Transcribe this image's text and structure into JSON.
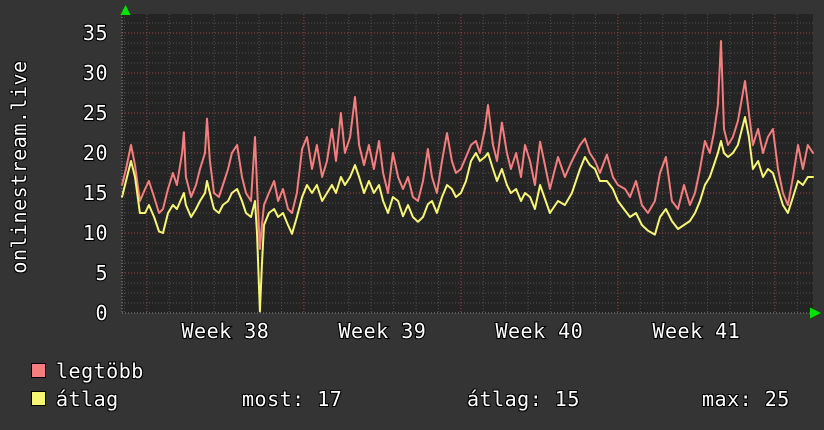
{
  "title": "onlinestream.live",
  "colors": {
    "background": "#343434",
    "plot_background": "#242424",
    "grid_minor": "#4e4e4e",
    "grid_major": "#9c4545",
    "axis": "#8a8a8a",
    "arrow": "#00e400",
    "text": "#ffffff",
    "series_max": "#f47d7d",
    "series_avg": "#f6f675"
  },
  "legend": {
    "items": [
      {
        "label": "legtöbb",
        "color": "#f47d7d"
      },
      {
        "label": "átlag",
        "color": "#f6f675"
      }
    ],
    "stats": [
      {
        "text": "most: 17"
      },
      {
        "text": "átlag: 15"
      },
      {
        "text": "max: 25"
      }
    ]
  },
  "chart_data": {
    "type": "line",
    "title": "onlinestream.live",
    "xlabel": "",
    "ylabel": "onlinestream.live",
    "grid": true,
    "legend_position": "bottom-left",
    "ylim": [
      0,
      37.375
    ],
    "y_ticks": [
      0,
      5,
      10,
      15,
      20,
      25,
      30,
      35
    ],
    "y_minor_step": 1.25,
    "x_unit": "days",
    "x_total_days": 30.81,
    "week_boundaries_days": [
      1.11,
      8.11,
      15.11,
      22.11,
      29.11
    ],
    "x_tick_labels": [
      {
        "label": "Week 38",
        "day": 4.61
      },
      {
        "label": "Week 39",
        "day": 11.61
      },
      {
        "label": "Week 40",
        "day": 18.61
      },
      {
        "label": "Week 41",
        "day": 25.61
      }
    ],
    "summary": {
      "most": 17,
      "atlag": 15,
      "max": 25
    },
    "x": [
      0,
      0.18,
      0.4,
      0.58,
      0.8,
      1.03,
      1.2,
      1.43,
      1.65,
      1.83,
      2.05,
      2.27,
      2.45,
      2.68,
      2.76,
      2.85,
      3.08,
      3.3,
      3.48,
      3.7,
      3.79,
      3.92,
      4.1,
      4.32,
      4.5,
      4.73,
      4.9,
      5.13,
      5.35,
      5.53,
      5.75,
      5.93,
      6.02,
      6.15,
      6.24,
      6.33,
      6.55,
      6.78,
      6.96,
      7.18,
      7.4,
      7.58,
      7.8,
      8.03,
      8.25,
      8.47,
      8.69,
      8.92,
      9.14,
      9.36,
      9.54,
      9.76,
      9.94,
      10.17,
      10.39,
      10.57,
      10.79,
      11.01,
      11.23,
      11.46,
      11.64,
      11.86,
      12.08,
      12.31,
      12.53,
      12.75,
      12.97,
      13.2,
      13.42,
      13.64,
      13.82,
      14.04,
      14.27,
      14.49,
      14.71,
      14.89,
      15.11,
      15.34,
      15.56,
      15.78,
      15.96,
      16.18,
      16.32,
      16.54,
      16.72,
      16.94,
      17.16,
      17.34,
      17.57,
      17.79,
      17.97,
      18.19,
      18.41,
      18.64,
      19.08,
      19.44,
      19.75,
      20.06,
      20.42,
      20.64,
      20.86,
      21.09,
      21.31,
      21.62,
      21.89,
      22.11,
      22.43,
      22.65,
      22.92,
      23.18,
      23.45,
      23.76,
      23.99,
      24.25,
      24.52,
      24.79,
      25.06,
      25.32,
      25.55,
      25.77,
      25.99,
      26.21,
      26.39,
      26.57,
      26.71,
      26.84,
      27.02,
      27.24,
      27.46,
      27.78,
      27.95,
      28.13,
      28.36,
      28.58,
      28.8,
      29.02,
      29.25,
      29.47,
      29.69,
      29.92,
      30.14,
      30.36,
      30.58,
      30.81
    ],
    "series": [
      {
        "name": "legtöbb",
        "color": "#f47d7d",
        "values": [
          16,
          18,
          21,
          18.5,
          14,
          15.5,
          16.5,
          14.5,
          12.5,
          13,
          15.5,
          17.5,
          16,
          20,
          22.6,
          17,
          14.5,
          16,
          18,
          20,
          24.3,
          19,
          15,
          14.5,
          16,
          18,
          20,
          21,
          17,
          15,
          14,
          22,
          16,
          8,
          11,
          13.5,
          15,
          16.5,
          14,
          15.5,
          13,
          12.5,
          15,
          20.5,
          22,
          18,
          21,
          17,
          19,
          23,
          19,
          25,
          20,
          22,
          27,
          21,
          18.5,
          21,
          18,
          21.5,
          17.5,
          15,
          20,
          17,
          15.5,
          17,
          14.5,
          14,
          16.5,
          20.5,
          17,
          15,
          19,
          22.5,
          19,
          17.5,
          18,
          19.5,
          21,
          21.5,
          20,
          23,
          26,
          21,
          19,
          23.8,
          20,
          18,
          20,
          17,
          21,
          19,
          16,
          21.4,
          15.5,
          19.5,
          17,
          19,
          21,
          21.8,
          20,
          19,
          17.5,
          19.8,
          17,
          16,
          15.5,
          14.5,
          16.5,
          13.5,
          12.5,
          14,
          17.5,
          19.5,
          14,
          13,
          16,
          13.5,
          15,
          18,
          21.5,
          20,
          22.5,
          26,
          34,
          23,
          21,
          22,
          24,
          29,
          25,
          21,
          23,
          20,
          22,
          23,
          18,
          15,
          13.5,
          17,
          21,
          18,
          21,
          20
        ]
      },
      {
        "name": "átlag",
        "color": "#f6f675",
        "values": [
          14.5,
          16.5,
          19,
          17,
          12.5,
          12.5,
          13.5,
          12,
          10.2,
          10,
          12.5,
          13.5,
          13,
          14.5,
          15,
          13.5,
          12,
          13,
          14,
          15,
          16.5,
          15,
          13,
          12.5,
          13.5,
          14,
          15,
          15.5,
          14,
          12.5,
          12,
          14,
          10,
          0.2,
          6,
          11,
          12.5,
          13,
          12,
          12.5,
          11,
          9.9,
          12,
          14.5,
          16,
          15,
          16,
          14,
          15,
          16,
          15,
          17,
          16,
          17,
          18.5,
          17,
          15,
          16.5,
          15,
          16,
          14,
          12.5,
          14.5,
          14,
          12.1,
          13.5,
          12,
          11.4,
          12,
          13.6,
          14,
          12.5,
          14.5,
          16,
          15.5,
          14.5,
          15,
          16.5,
          19,
          20,
          19,
          19.5,
          20,
          18,
          16.5,
          18,
          16,
          15,
          15.5,
          14,
          15,
          14.5,
          13,
          16,
          12.5,
          14,
          13.5,
          15,
          18,
          19.5,
          18.5,
          18,
          16.5,
          16.5,
          15.5,
          14,
          12.8,
          12,
          12.5,
          11,
          10.3,
          9.8,
          12,
          13,
          11.5,
          10.5,
          11,
          11.5,
          12.5,
          14,
          16,
          17,
          18.5,
          20,
          21.5,
          20,
          19.5,
          20,
          21,
          24.5,
          22,
          18,
          19,
          17,
          18,
          17.5,
          15.5,
          13.5,
          12.5,
          14.5,
          16.5,
          16,
          17,
          17
        ]
      }
    ]
  }
}
